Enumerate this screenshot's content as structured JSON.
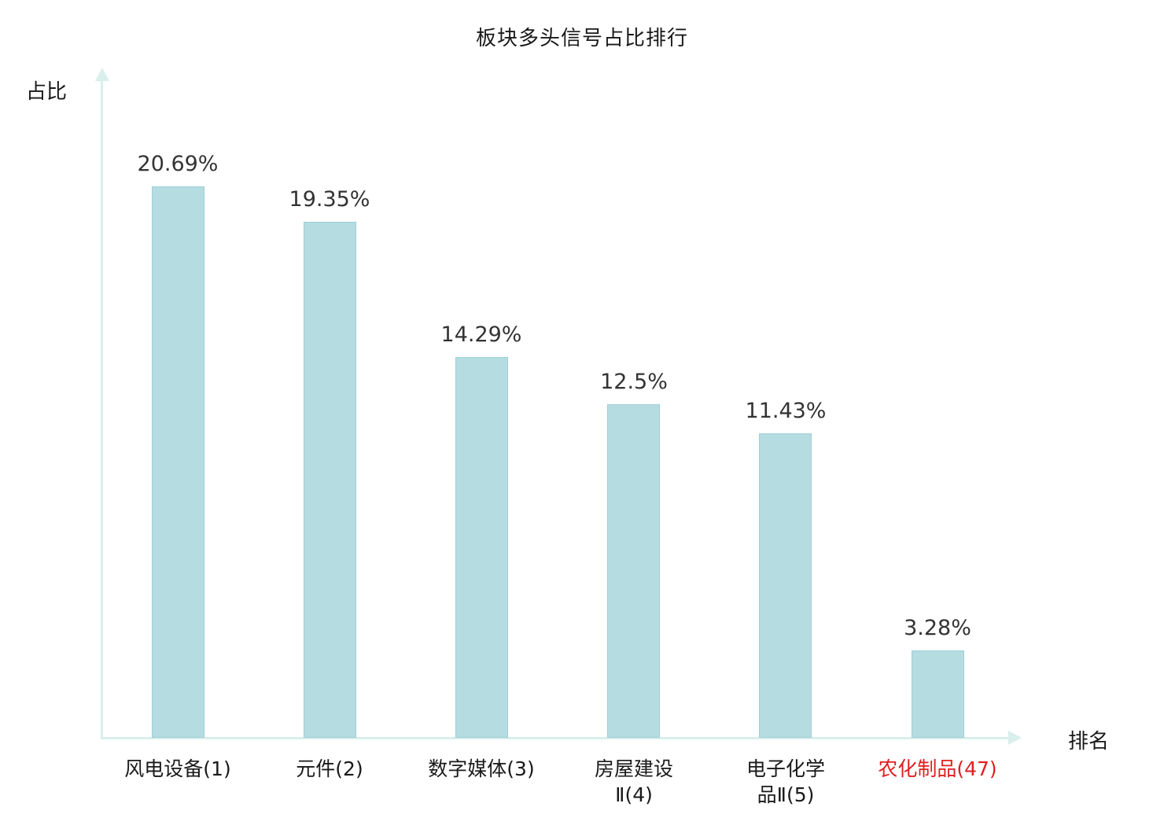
{
  "chart_data": {
    "type": "bar",
    "title": "板块多头信号占比排行",
    "ylabel": "占比",
    "xlabel": "排名",
    "categories": [
      "风电设备(1)",
      "元件(2)",
      "数字媒体(3)",
      "房屋建设Ⅱ(4)",
      "电子化学品Ⅱ(5)",
      "农化制品(47)"
    ],
    "tick_labels": [
      "风电设备(1)",
      "元件(2)",
      "数字媒体(3)",
      "房屋建设\nⅡ(4)",
      "电子化学\n品Ⅱ(5)",
      "农化制品(47)"
    ],
    "values": [
      20.69,
      19.35,
      14.29,
      12.5,
      11.43,
      3.28
    ],
    "value_labels": [
      "20.69%",
      "19.35%",
      "14.29%",
      "12.5%",
      "11.43%",
      "3.28%"
    ],
    "tick_label_colors": [
      "#1a1a1a",
      "#1a1a1a",
      "#1a1a1a",
      "#1a1a1a",
      "#1a1a1a",
      "#e01f1f"
    ],
    "bar_color": "#b5dde1",
    "bar_border_color": "#9dced5",
    "axis_color": "#d9efec",
    "value_label_color": "#333333",
    "ylim": [
      0,
      25
    ],
    "grid": false,
    "legend_position": "none"
  }
}
